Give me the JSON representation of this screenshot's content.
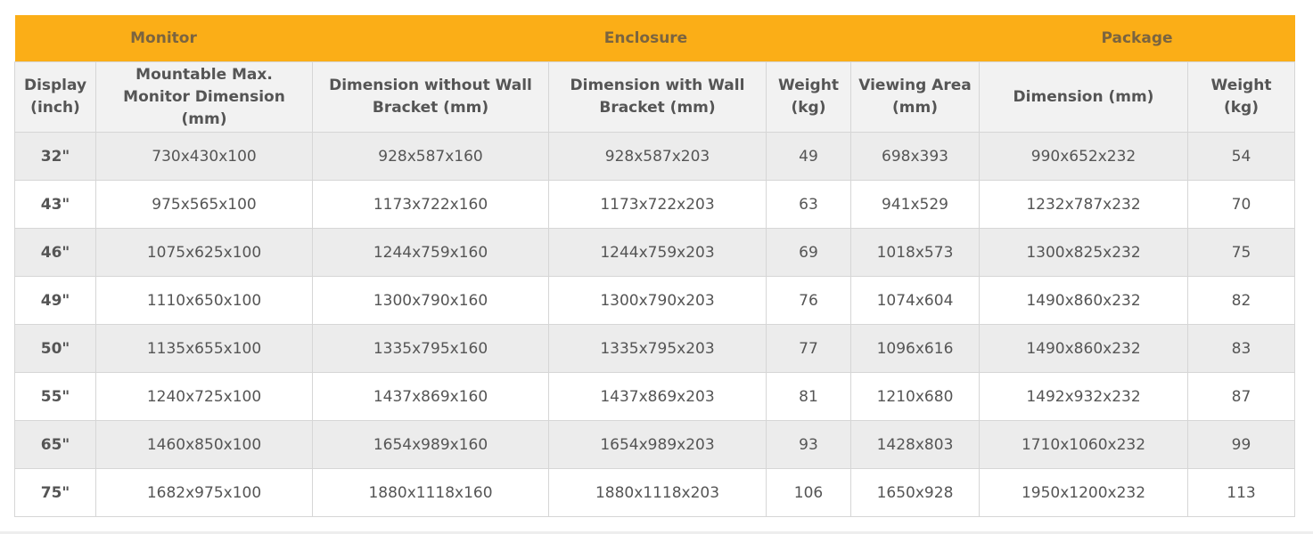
{
  "table": {
    "groups": [
      "Monitor",
      "Enclosure",
      "Package"
    ],
    "columns": [
      "Display (inch)",
      "Mountable Max. Monitor Dimension (mm)",
      "Dimension without Wall Bracket (mm)",
      "Dimension with Wall Bracket (mm)",
      "Weight (kg)",
      "Viewing Area (mm)",
      "Dimension (mm)",
      "Weight (kg)"
    ],
    "rows": [
      [
        "32\"",
        "730x430x100",
        "928x587x160",
        "928x587x203",
        "49",
        "698x393",
        "990x652x232",
        "54"
      ],
      [
        "43\"",
        "975x565x100",
        "1173x722x160",
        "1173x722x203",
        "63",
        "941x529",
        "1232x787x232",
        "70"
      ],
      [
        "46\"",
        "1075x625x100",
        "1244x759x160",
        "1244x759x203",
        "69",
        "1018x573",
        "1300x825x232",
        "75"
      ],
      [
        "49\"",
        "1110x650x100",
        "1300x790x160",
        "1300x790x203",
        "76",
        "1074x604",
        "1490x860x232",
        "82"
      ],
      [
        "50\"",
        "1135x655x100",
        "1335x795x160",
        "1335x795x203",
        "77",
        "1096x616",
        "1490x860x232",
        "83"
      ],
      [
        "55\"",
        "1240x725x100",
        "1437x869x160",
        "1437x869x203",
        "81",
        "1210x680",
        "1492x932x232",
        "87"
      ],
      [
        "65\"",
        "1460x850x100",
        "1654x989x160",
        "1654x989x203",
        "93",
        "1428x803",
        "1710x1060x232",
        "99"
      ],
      [
        "75\"",
        "1682x975x100",
        "1880x1118x160",
        "1880x1118x203",
        "106",
        "1650x928",
        "1950x1200x232",
        "113"
      ]
    ]
  }
}
